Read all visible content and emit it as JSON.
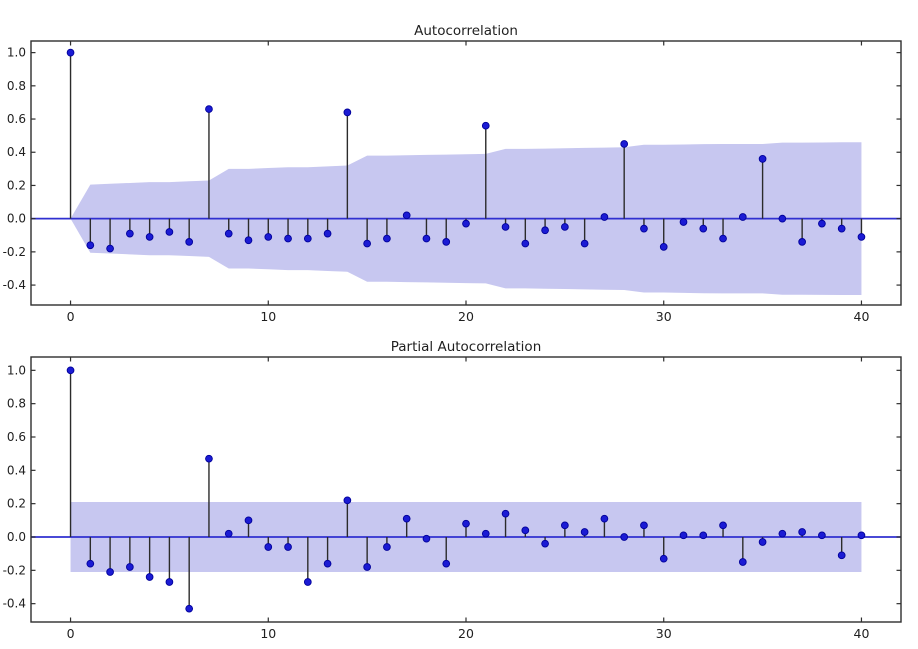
{
  "figure": {
    "kind": "acf-pacf-figure",
    "background": "#ffffff"
  },
  "colors": {
    "marker": "#1b1bd4",
    "marker_edge": "#00009a",
    "stem": "#2b2b2b",
    "zero_line": "#3030d0",
    "confidence_band": "#c7c7f0",
    "spine": "#2e2e2e",
    "tick_label": "#1f1f1f",
    "title": "#1f1f1f"
  },
  "chart_data": [
    {
      "type": "stem",
      "title": "Autocorrelation",
      "xlabel": "",
      "ylabel": "",
      "legend": null,
      "grid": false,
      "x_start_lag": 0,
      "values": [
        1.0,
        -0.16,
        -0.18,
        -0.09,
        -0.11,
        -0.08,
        -0.14,
        0.66,
        -0.09,
        -0.13,
        -0.11,
        -0.12,
        -0.12,
        -0.09,
        0.64,
        -0.15,
        -0.12,
        0.02,
        -0.12,
        -0.14,
        -0.03,
        0.56,
        -0.05,
        -0.15,
        -0.07,
        -0.05,
        -0.15,
        0.01,
        0.45,
        -0.06,
        -0.17,
        -0.02,
        -0.06,
        -0.12,
        0.01,
        0.36,
        0.0,
        -0.14,
        -0.03,
        -0.06,
        -0.11
      ],
      "conf_upper": [
        0,
        0.205,
        0.21,
        0.215,
        0.22,
        0.22,
        0.225,
        0.23,
        0.3,
        0.3,
        0.305,
        0.31,
        0.31,
        0.315,
        0.32,
        0.38,
        0.38,
        0.382,
        0.384,
        0.386,
        0.388,
        0.39,
        0.42,
        0.42,
        0.422,
        0.424,
        0.426,
        0.428,
        0.43,
        0.445,
        0.445,
        0.447,
        0.449,
        0.45,
        0.45,
        0.45,
        0.458,
        0.458,
        0.459,
        0.46,
        0.46
      ],
      "conf_band_symmetric": true,
      "xticks": [
        "0",
        "10",
        "20",
        "30",
        "40"
      ],
      "xtick_values": [
        0,
        10,
        20,
        30,
        40
      ],
      "yticks": [
        "1.0",
        "0.8",
        "0.6",
        "0.4",
        "0.2",
        "0.0",
        "-0.2",
        "-0.4"
      ],
      "ytick_values": [
        1.0,
        0.8,
        0.6,
        0.4,
        0.2,
        0.0,
        -0.2,
        -0.4
      ],
      "xlim": [
        -2,
        42
      ],
      "ylim": [
        -0.52,
        1.07
      ]
    },
    {
      "type": "stem",
      "title": "Partial Autocorrelation",
      "xlabel": "",
      "ylabel": "",
      "legend": null,
      "grid": false,
      "x_start_lag": 0,
      "values": [
        1.0,
        -0.16,
        -0.21,
        -0.18,
        -0.24,
        -0.27,
        -0.43,
        0.47,
        0.02,
        0.1,
        -0.06,
        -0.06,
        -0.27,
        -0.16,
        0.22,
        -0.18,
        -0.06,
        0.11,
        -0.01,
        -0.16,
        0.08,
        0.02,
        0.14,
        0.04,
        -0.04,
        0.07,
        0.03,
        0.11,
        0.0,
        0.07,
        -0.13,
        0.01,
        0.01,
        0.07,
        -0.15,
        -0.03,
        0.02,
        0.03,
        0.01,
        -0.11,
        0.01
      ],
      "conf_upper": [
        0.21,
        0.21,
        0.21,
        0.21,
        0.21,
        0.21,
        0.21,
        0.21,
        0.21,
        0.21,
        0.21,
        0.21,
        0.21,
        0.21,
        0.21,
        0.21,
        0.21,
        0.21,
        0.21,
        0.21,
        0.21,
        0.21,
        0.21,
        0.21,
        0.21,
        0.21,
        0.21,
        0.21,
        0.21,
        0.21,
        0.21,
        0.21,
        0.21,
        0.21,
        0.21,
        0.21,
        0.21,
        0.21,
        0.21,
        0.21,
        0.21
      ],
      "conf_band_symmetric": true,
      "xticks": [
        "0",
        "10",
        "20",
        "30",
        "40"
      ],
      "xtick_values": [
        0,
        10,
        20,
        30,
        40
      ],
      "yticks": [
        "1.0",
        "0.8",
        "0.6",
        "0.4",
        "0.2",
        "0.0",
        "-0.2",
        "-0.4"
      ],
      "ytick_values": [
        1.0,
        0.8,
        0.6,
        0.4,
        0.2,
        0.0,
        -0.2,
        -0.4
      ],
      "xlim": [
        -2,
        42
      ],
      "ylim": [
        -0.51,
        1.08
      ]
    }
  ]
}
